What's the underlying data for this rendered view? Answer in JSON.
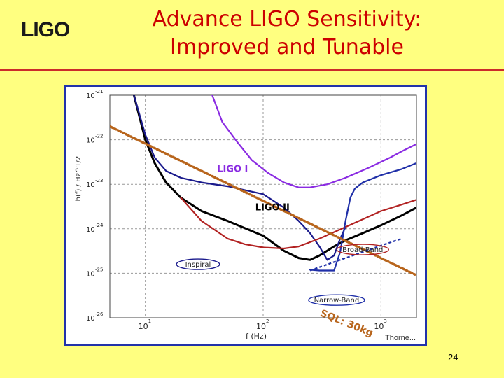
{
  "slide": {
    "logo_text": "LIGO",
    "title_line1": "Advance LIGO Sensitivity:",
    "title_line2": "Improved and Tunable",
    "page_number": "24"
  },
  "colors": {
    "background": "#ffff80",
    "title": "#cc0000",
    "rule": "#cc2b2b",
    "ligo1": "#8a2be2",
    "ligo2": "#000000",
    "inspiral": "#1a1a8c",
    "broadband": "#b22222",
    "narrowband": "#1f2fa8",
    "sql": "#b8651c"
  },
  "chart_data": {
    "type": "line",
    "xlabel": "f (Hz)",
    "ylabel": "h(f) / Hz^1/2",
    "xscale": "log",
    "yscale": "log",
    "xlim": [
      5,
      2000
    ],
    "ylim": [
      1e-26,
      1e-21
    ],
    "x_ticks": [
      {
        "value": 10,
        "base": "10",
        "exp": "1"
      },
      {
        "value": 100,
        "base": "10",
        "exp": "2"
      },
      {
        "value": 1000,
        "base": "10",
        "exp": "3"
      }
    ],
    "y_ticks": [
      {
        "value": 1e-21,
        "base": "10",
        "exp": "-21"
      },
      {
        "value": 1e-22,
        "base": "10",
        "exp": "-22"
      },
      {
        "value": 1e-23,
        "base": "10",
        "exp": "-23"
      },
      {
        "value": 1e-24,
        "base": "10",
        "exp": "-24"
      },
      {
        "value": 1e-25,
        "base": "10",
        "exp": "-25"
      },
      {
        "value": 1e-26,
        "base": "10",
        "exp": "-26"
      }
    ],
    "grid": true,
    "source_note": "Thorne...",
    "series": [
      {
        "name": "LIGO I",
        "color_key": "ligo1",
        "x": [
          37,
          45,
          60,
          80,
          110,
          150,
          200,
          250,
          350,
          500,
          800,
          1200,
          1500,
          2000
        ],
        "y": [
          1e-21,
          2.5e-22,
          9e-23,
          3.5e-23,
          1.8e-23,
          1.1e-23,
          8.5e-24,
          8.5e-24,
          1e-23,
          1.4e-23,
          2.4e-23,
          4e-23,
          5.5e-23,
          8e-23
        ]
      },
      {
        "name": "LIGO II",
        "color_key": "ligo2",
        "x": [
          8,
          10,
          12,
          15,
          20,
          30,
          50,
          100,
          150,
          200,
          250,
          300,
          400,
          500,
          700,
          1000,
          1500,
          2000
        ],
        "y": [
          1e-21,
          1e-22,
          3e-23,
          1.1e-23,
          5e-24,
          2.5e-24,
          1.5e-24,
          7e-25,
          3.2e-25,
          2.2e-25,
          2e-25,
          2.5e-25,
          4e-25,
          5.5e-25,
          8e-25,
          1.2e-24,
          2e-24,
          3e-24
        ]
      },
      {
        "name": "Inspiral",
        "color_key": "inspiral",
        "x": [
          8,
          10,
          12,
          15,
          20,
          30,
          50,
          100,
          150,
          200,
          250,
          300,
          350,
          400,
          450,
          500
        ],
        "y": [
          1e-21,
          1.3e-22,
          4e-23,
          2e-23,
          1.4e-23,
          1.1e-23,
          9e-24,
          6e-24,
          3e-24,
          1.5e-24,
          8e-25,
          4e-25,
          2e-25,
          2.5e-25,
          6e-25,
          1.1e-24
        ]
      },
      {
        "name": "Broad-Band",
        "color_key": "broadband",
        "x": [
          20,
          30,
          50,
          70,
          100,
          150,
          200,
          300,
          500,
          1000,
          1500,
          2000
        ],
        "y": [
          5e-24,
          1.5e-24,
          6e-25,
          4.5e-25,
          3.8e-25,
          3.6e-25,
          4e-25,
          6e-25,
          1.1e-24,
          2.5e-24,
          3.5e-24,
          4.5e-24
        ]
      },
      {
        "name": "Narrow-Band",
        "color_key": "narrowband",
        "x": [
          250,
          300,
          400,
          450,
          500,
          550,
          600,
          700,
          1000,
          1500,
          2000
        ],
        "y": [
          1.2e-25,
          1.15e-25,
          1.15e-25,
          3e-25,
          1.5e-24,
          5e-24,
          8e-24,
          1.1e-23,
          1.6e-23,
          2.2e-23,
          3e-23
        ]
      },
      {
        "name": "SQL: 30kg",
        "color_key": "sql",
        "x": [
          5,
          2000
        ],
        "y": [
          2e-22,
          9e-26
        ]
      }
    ],
    "narrowband_dotted": {
      "x": [
        250,
        500,
        700,
        1000,
        1500
      ],
      "y": [
        1.15e-25,
        2.2e-25,
        3e-25,
        4.2e-25,
        6e-25
      ]
    },
    "labels": [
      {
        "text": "LIGO I",
        "x": 55,
        "y": 1.9e-23,
        "color_key": "ligo1",
        "boxed": false
      },
      {
        "text": "LIGO II",
        "x": 120,
        "y": 2.6e-24,
        "color_key": "ligo2",
        "boxed": false
      },
      {
        "text": "Broad-Band",
        "x": 700,
        "y": 3e-25,
        "color_key": "broadband",
        "boxed": true
      },
      {
        "text": "Inspiral",
        "x": 28,
        "y": 1.4e-25,
        "color_key": "inspiral",
        "boxed": true
      },
      {
        "text": "Narrow-Band",
        "x": 420,
        "y": 2.2e-26,
        "color_key": "narrowband",
        "boxed": true
      },
      {
        "text": "SQL: 30kg",
        "x": 500,
        "y": 6.5e-27,
        "color_key": "sql",
        "boxed": false
      }
    ]
  }
}
